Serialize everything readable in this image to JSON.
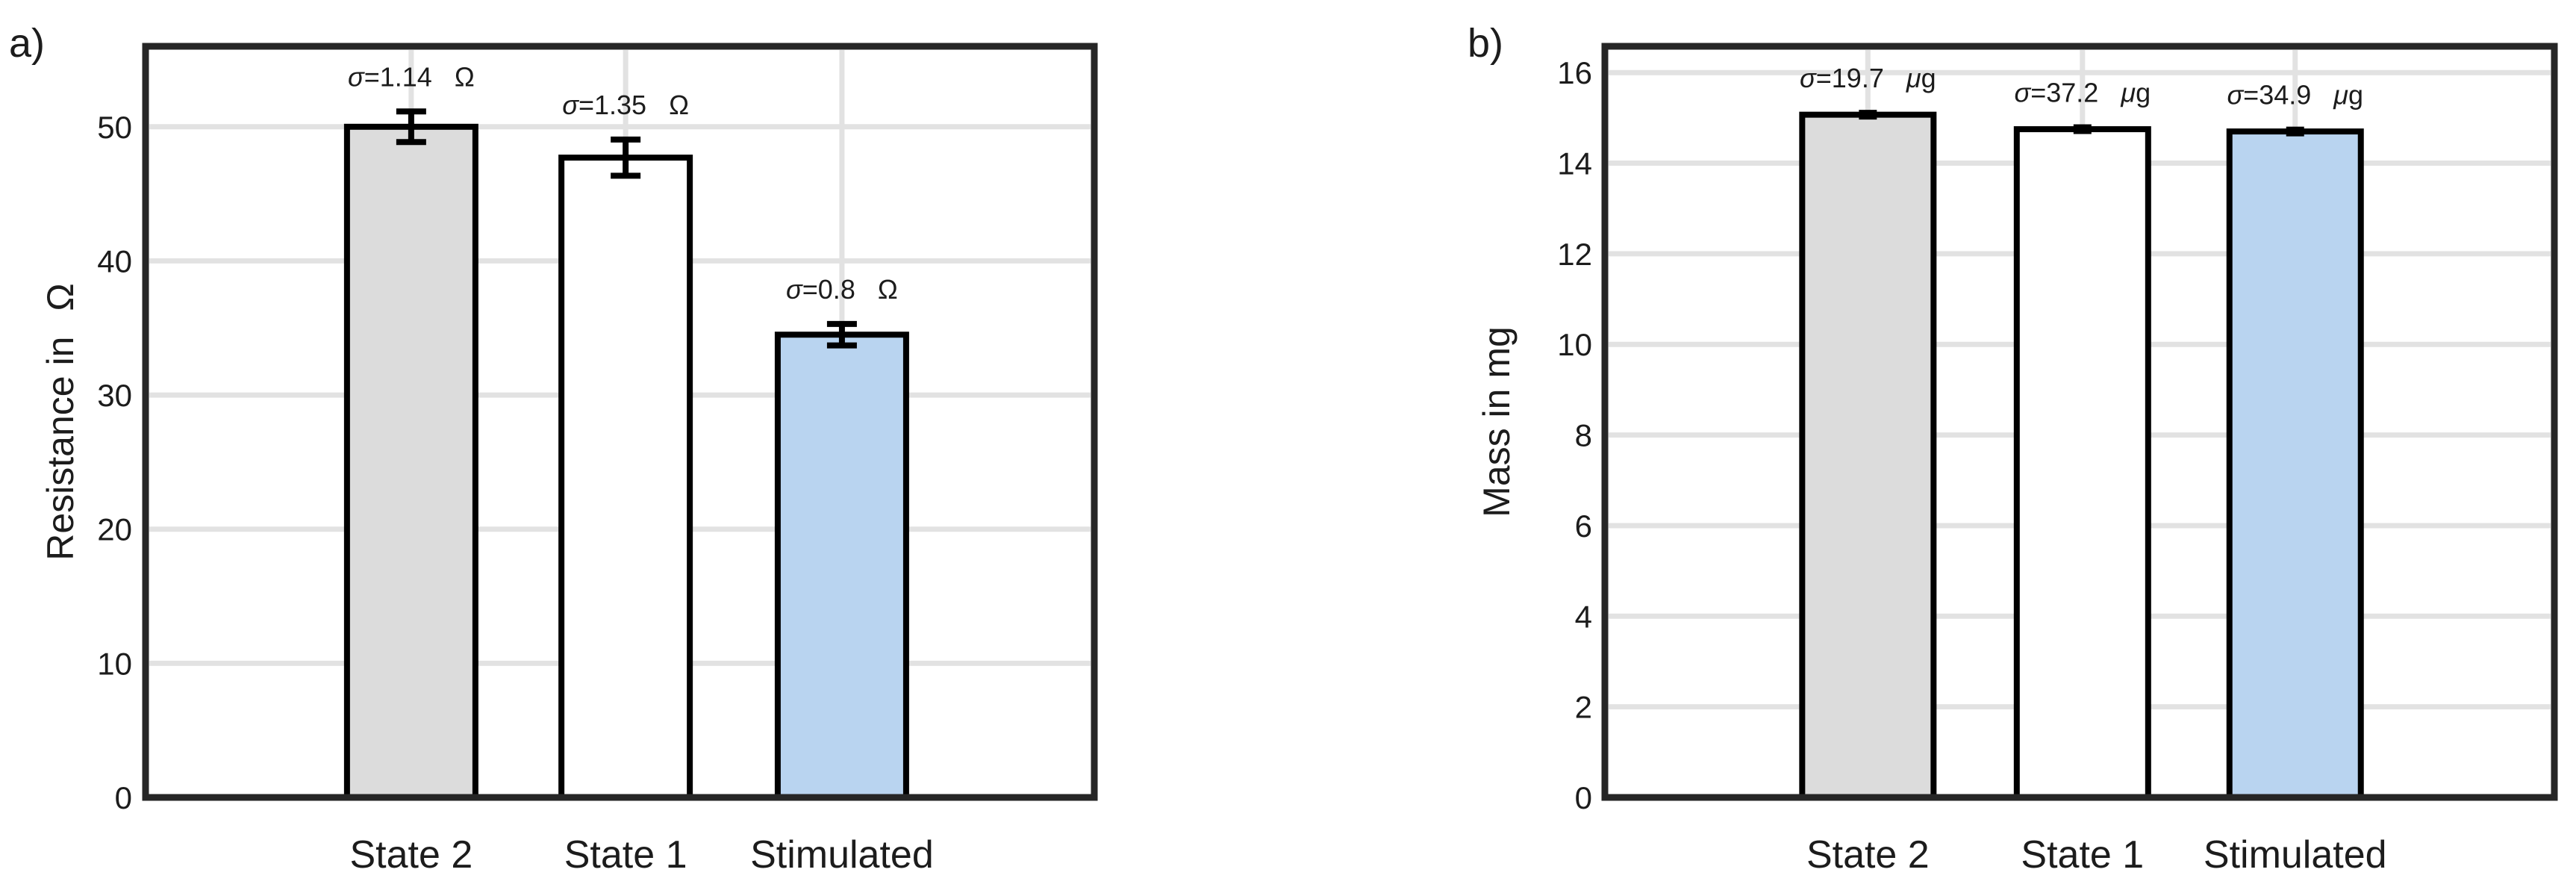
{
  "figure": {
    "background": "#ffffff",
    "axis_color": "#262626",
    "grid_color": "#e2e2e2",
    "bar_border_color": "#000000",
    "text_color": "#1c1c1c"
  },
  "chart_data": [
    {
      "type": "bar",
      "panel_label": "a)",
      "ylabel": "Resistance in",
      "ylabel_unit": "Ω",
      "categories": [
        "State 2",
        "State 1",
        "Stimulated"
      ],
      "values": [
        50.0,
        47.7,
        34.5
      ],
      "errors": [
        1.14,
        1.35,
        0.8
      ],
      "sigma_values": [
        "1.14",
        "1.35",
        "0.8"
      ],
      "sigma_symbol": "σ",
      "sigma_unit": "Ω",
      "annotations": [
        "σ=1.14  Ω",
        "σ=1.35  Ω",
        "σ=0.8  Ω"
      ],
      "yticks": [
        0,
        10,
        20,
        30,
        40,
        50
      ],
      "ylim": [
        0,
        56
      ],
      "grid": true,
      "legend": "none",
      "bar_colors": [
        "#dcdcdc",
        "#ffffff",
        "#b9d4f0"
      ]
    },
    {
      "type": "bar",
      "panel_label": "b)",
      "ylabel": "Mass in mg",
      "ylabel_unit": "",
      "categories": [
        "State 2",
        "State 1",
        "Stimulated"
      ],
      "values": [
        15.07,
        14.75,
        14.7
      ],
      "errors": [
        0.0197,
        0.0372,
        0.0349
      ],
      "sigma_values": [
        "19.7",
        "37.2",
        "34.9"
      ],
      "sigma_symbol": "σ",
      "sigma_unit": "μg",
      "annotations": [
        "σ=19.7  μg",
        "σ=37.2  μg",
        "σ=34.9  μg"
      ],
      "yticks": [
        0,
        2,
        4,
        6,
        8,
        10,
        12,
        14,
        16
      ],
      "ylim": [
        0,
        16.58
      ],
      "grid": true,
      "legend": "none",
      "bar_colors": [
        "#dcdcdc",
        "#ffffff",
        "#b9d4f0"
      ]
    }
  ]
}
